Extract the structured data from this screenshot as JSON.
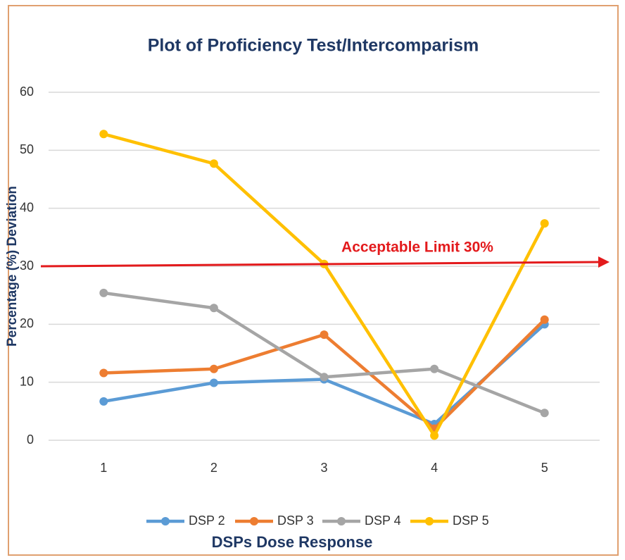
{
  "chart_data": {
    "type": "line",
    "title": "Plot of Proficiency Test/Intercomparism",
    "x_label": "DSPs Dose Response",
    "y_label": "Percentage (%) Deviation",
    "categories": [
      "1",
      "2",
      "3",
      "4",
      "5"
    ],
    "series": [
      {
        "name": "DSP 2",
        "color": "#5b9bd5",
        "values": [
          6.7,
          9.9,
          10.5,
          2.8,
          20.0
        ]
      },
      {
        "name": "DSP 3",
        "color": "#ed7d31",
        "values": [
          11.6,
          12.3,
          18.2,
          2.0,
          20.8
        ]
      },
      {
        "name": "DSP 4",
        "color": "#a5a5a5",
        "values": [
          25.4,
          22.8,
          10.9,
          12.3,
          4.7
        ]
      },
      {
        "name": "DSP 5",
        "color": "#ffc000",
        "values": [
          52.8,
          47.7,
          30.4,
          0.8,
          37.4
        ]
      }
    ],
    "reference_line": {
      "value": 30,
      "label": "Acceptable Limit 30%",
      "color": "#e31a1c"
    },
    "ylim": [
      0,
      60
    ],
    "yticks": [
      0,
      10,
      20,
      30,
      40,
      50,
      60
    ],
    "grid": true,
    "legend": "bottom"
  }
}
